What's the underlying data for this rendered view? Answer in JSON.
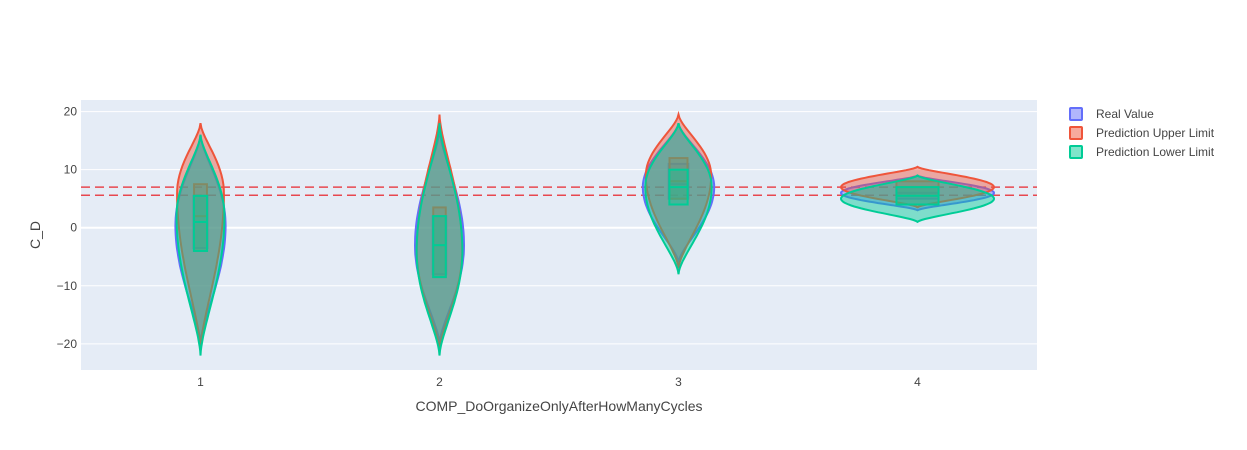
{
  "chart_data": {
    "type": "violin",
    "xlabel": "COMP_DoOrganizeOnlyAfterHowManyCycles",
    "ylabel": "C_D",
    "categories": [
      "1",
      "2",
      "3",
      "4"
    ],
    "ylim": [
      -24.5,
      22
    ],
    "yticks": [
      20,
      10,
      0,
      -10,
      -20
    ],
    "ytick_labels": [
      "20",
      "10",
      "0",
      "−10",
      "−20"
    ],
    "grid": true,
    "legend_position": "top-right",
    "reference_lines": [
      7.0,
      5.6
    ],
    "reference_line_color": "#e8474f",
    "series": [
      {
        "name": "Real Value",
        "color": "#636efa",
        "violins": [
          {
            "category": "1",
            "min": -20,
            "max": 16,
            "q1": -3.5,
            "median": 1,
            "q3": 5.5,
            "peak": 0.5
          },
          {
            "category": "2",
            "min": -20,
            "max": 17,
            "q1": -8,
            "median": -3,
            "q3": 2,
            "peak": -3
          },
          {
            "category": "3",
            "min": -6,
            "max": 18,
            "q1": 5,
            "median": 7.5,
            "q3": 11,
            "peak": 7
          },
          {
            "category": "4",
            "min": 3,
            "max": 9,
            "q1": 5,
            "median": 6,
            "q3": 7,
            "peak": 6
          }
        ]
      },
      {
        "name": "Prediction Upper Limit",
        "color": "#ef553b",
        "violins": [
          {
            "category": "1",
            "min": -21,
            "max": 18,
            "q1": -4,
            "median": 2,
            "q3": 7.5,
            "peak": 6
          },
          {
            "category": "2",
            "min": -21,
            "max": 19.5,
            "q1": -8.5,
            "median": -3,
            "q3": 3.5,
            "peak": -4
          },
          {
            "category": "3",
            "min": -7,
            "max": 19.5,
            "q1": 5,
            "median": 8,
            "q3": 12,
            "peak": 9
          },
          {
            "category": "4",
            "min": 3.5,
            "max": 10.5,
            "q1": 5.5,
            "median": 7,
            "q3": 8,
            "peak": 7
          }
        ]
      },
      {
        "name": "Prediction Lower Limit",
        "color": "#00cc96",
        "violins": [
          {
            "category": "1",
            "min": -22,
            "max": 16,
            "q1": -4,
            "median": 1,
            "q3": 5.5,
            "peak": 2
          },
          {
            "category": "2",
            "min": -22,
            "max": 18,
            "q1": -8.5,
            "median": -3,
            "q3": 2,
            "peak": -4
          },
          {
            "category": "3",
            "min": -8,
            "max": 18,
            "q1": 4,
            "median": 7,
            "q3": 10,
            "peak": 7
          },
          {
            "category": "4",
            "min": 1,
            "max": 9,
            "q1": 4,
            "median": 5.5,
            "q3": 7,
            "peak": 5
          }
        ]
      }
    ]
  }
}
